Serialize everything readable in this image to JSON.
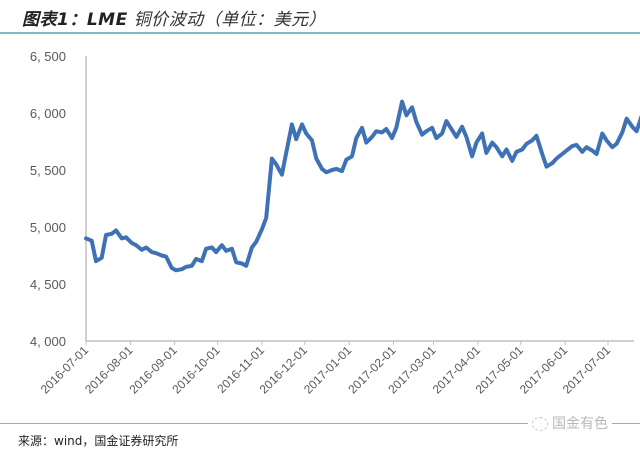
{
  "header": {
    "title_prefix": "图表1：LME",
    "title_rest": " 铜价波动（单位：美元）"
  },
  "footer": {
    "source": "来源：wind，国金证券研究所",
    "watermark": "国金有色"
  },
  "colors": {
    "line": "#3f72b5",
    "axis": "#bfbfbf",
    "rule": "#7fb8c4"
  },
  "chart_data": {
    "type": "line",
    "title": "LME 铜价波动（单位：美元）",
    "xlabel": "",
    "ylabel": "美元",
    "ylim": [
      4000,
      6500
    ],
    "yticks": [
      "4, 000",
      "4, 500",
      "5, 000",
      "5, 500",
      "6, 000",
      "6, 500"
    ],
    "xticks": [
      "2016-07-01",
      "2016-08-01",
      "2016-09-01",
      "2016-10-01",
      "2016-11-01",
      "2016-12-01",
      "2017-01-01",
      "2017-02-01",
      "2017-03-01",
      "2017-04-01",
      "2017-05-01",
      "2017-06-01",
      "2017-07-01"
    ],
    "grid": false,
    "legend": "none",
    "series": [
      {
        "name": "LME铜价",
        "x": [
          "2016-07-01",
          "2016-07-05",
          "2016-07-08",
          "2016-07-12",
          "2016-07-15",
          "2016-07-19",
          "2016-07-22",
          "2016-07-26",
          "2016-07-29",
          "2016-08-02",
          "2016-08-05",
          "2016-08-09",
          "2016-08-12",
          "2016-08-16",
          "2016-08-19",
          "2016-08-23",
          "2016-08-26",
          "2016-08-30",
          "2016-09-02",
          "2016-09-06",
          "2016-09-09",
          "2016-09-13",
          "2016-09-16",
          "2016-09-20",
          "2016-09-23",
          "2016-09-27",
          "2016-09-30",
          "2016-10-04",
          "2016-10-07",
          "2016-10-11",
          "2016-10-14",
          "2016-10-18",
          "2016-10-21",
          "2016-10-25",
          "2016-10-28",
          "2016-11-01",
          "2016-11-04",
          "2016-11-08",
          "2016-11-11",
          "2016-11-15",
          "2016-11-18",
          "2016-11-22",
          "2016-11-25",
          "2016-11-29",
          "2016-12-02",
          "2016-12-06",
          "2016-12-09",
          "2016-12-13",
          "2016-12-16",
          "2016-12-20",
          "2016-12-23",
          "2016-12-27",
          "2016-12-30",
          "2017-01-03",
          "2017-01-06",
          "2017-01-10",
          "2017-01-13",
          "2017-01-17",
          "2017-01-20",
          "2017-01-24",
          "2017-01-27",
          "2017-01-31",
          "2017-02-03",
          "2017-02-07",
          "2017-02-10",
          "2017-02-14",
          "2017-02-17",
          "2017-02-21",
          "2017-02-24",
          "2017-02-28",
          "2017-03-03",
          "2017-03-07",
          "2017-03-10",
          "2017-03-14",
          "2017-03-17",
          "2017-03-21",
          "2017-03-24",
          "2017-03-28",
          "2017-03-31",
          "2017-04-04",
          "2017-04-07",
          "2017-04-11",
          "2017-04-14",
          "2017-04-18",
          "2017-04-21",
          "2017-04-25",
          "2017-04-28",
          "2017-05-02",
          "2017-05-05",
          "2017-05-09",
          "2017-05-12",
          "2017-05-16",
          "2017-05-19",
          "2017-05-23",
          "2017-05-26",
          "2017-05-30",
          "2017-06-02",
          "2017-06-06",
          "2017-06-09",
          "2017-06-13",
          "2017-06-16",
          "2017-06-20",
          "2017-06-23",
          "2017-06-27",
          "2017-06-30",
          "2017-07-04",
          "2017-07-07",
          "2017-07-11",
          "2017-07-14",
          "2017-07-18",
          "2017-07-21",
          "2017-07-25"
        ],
        "values": [
          4900,
          4880,
          4700,
          4730,
          4930,
          4940,
          4970,
          4900,
          4910,
          4860,
          4840,
          4800,
          4820,
          4780,
          4770,
          4750,
          4740,
          4640,
          4620,
          4630,
          4650,
          4660,
          4720,
          4700,
          4810,
          4820,
          4780,
          4840,
          4790,
          4810,
          4690,
          4680,
          4660,
          4820,
          4870,
          4980,
          5080,
          5600,
          5550,
          5460,
          5650,
          5900,
          5770,
          5900,
          5820,
          5760,
          5600,
          5510,
          5480,
          5500,
          5510,
          5490,
          5590,
          5620,
          5780,
          5870,
          5740,
          5790,
          5840,
          5830,
          5860,
          5780,
          5870,
          6100,
          5980,
          6050,
          5920,
          5810,
          5840,
          5870,
          5780,
          5820,
          5930,
          5850,
          5790,
          5880,
          5790,
          5620,
          5740,
          5820,
          5650,
          5740,
          5700,
          5620,
          5680,
          5580,
          5660,
          5680,
          5730,
          5760,
          5800,
          5640,
          5530,
          5560,
          5600,
          5640,
          5670,
          5710,
          5720,
          5660,
          5700,
          5670,
          5640,
          5820,
          5760,
          5700,
          5730,
          5830,
          5950,
          5880,
          5840,
          5990
        ],
        "color": "#3f72b5"
      }
    ]
  }
}
